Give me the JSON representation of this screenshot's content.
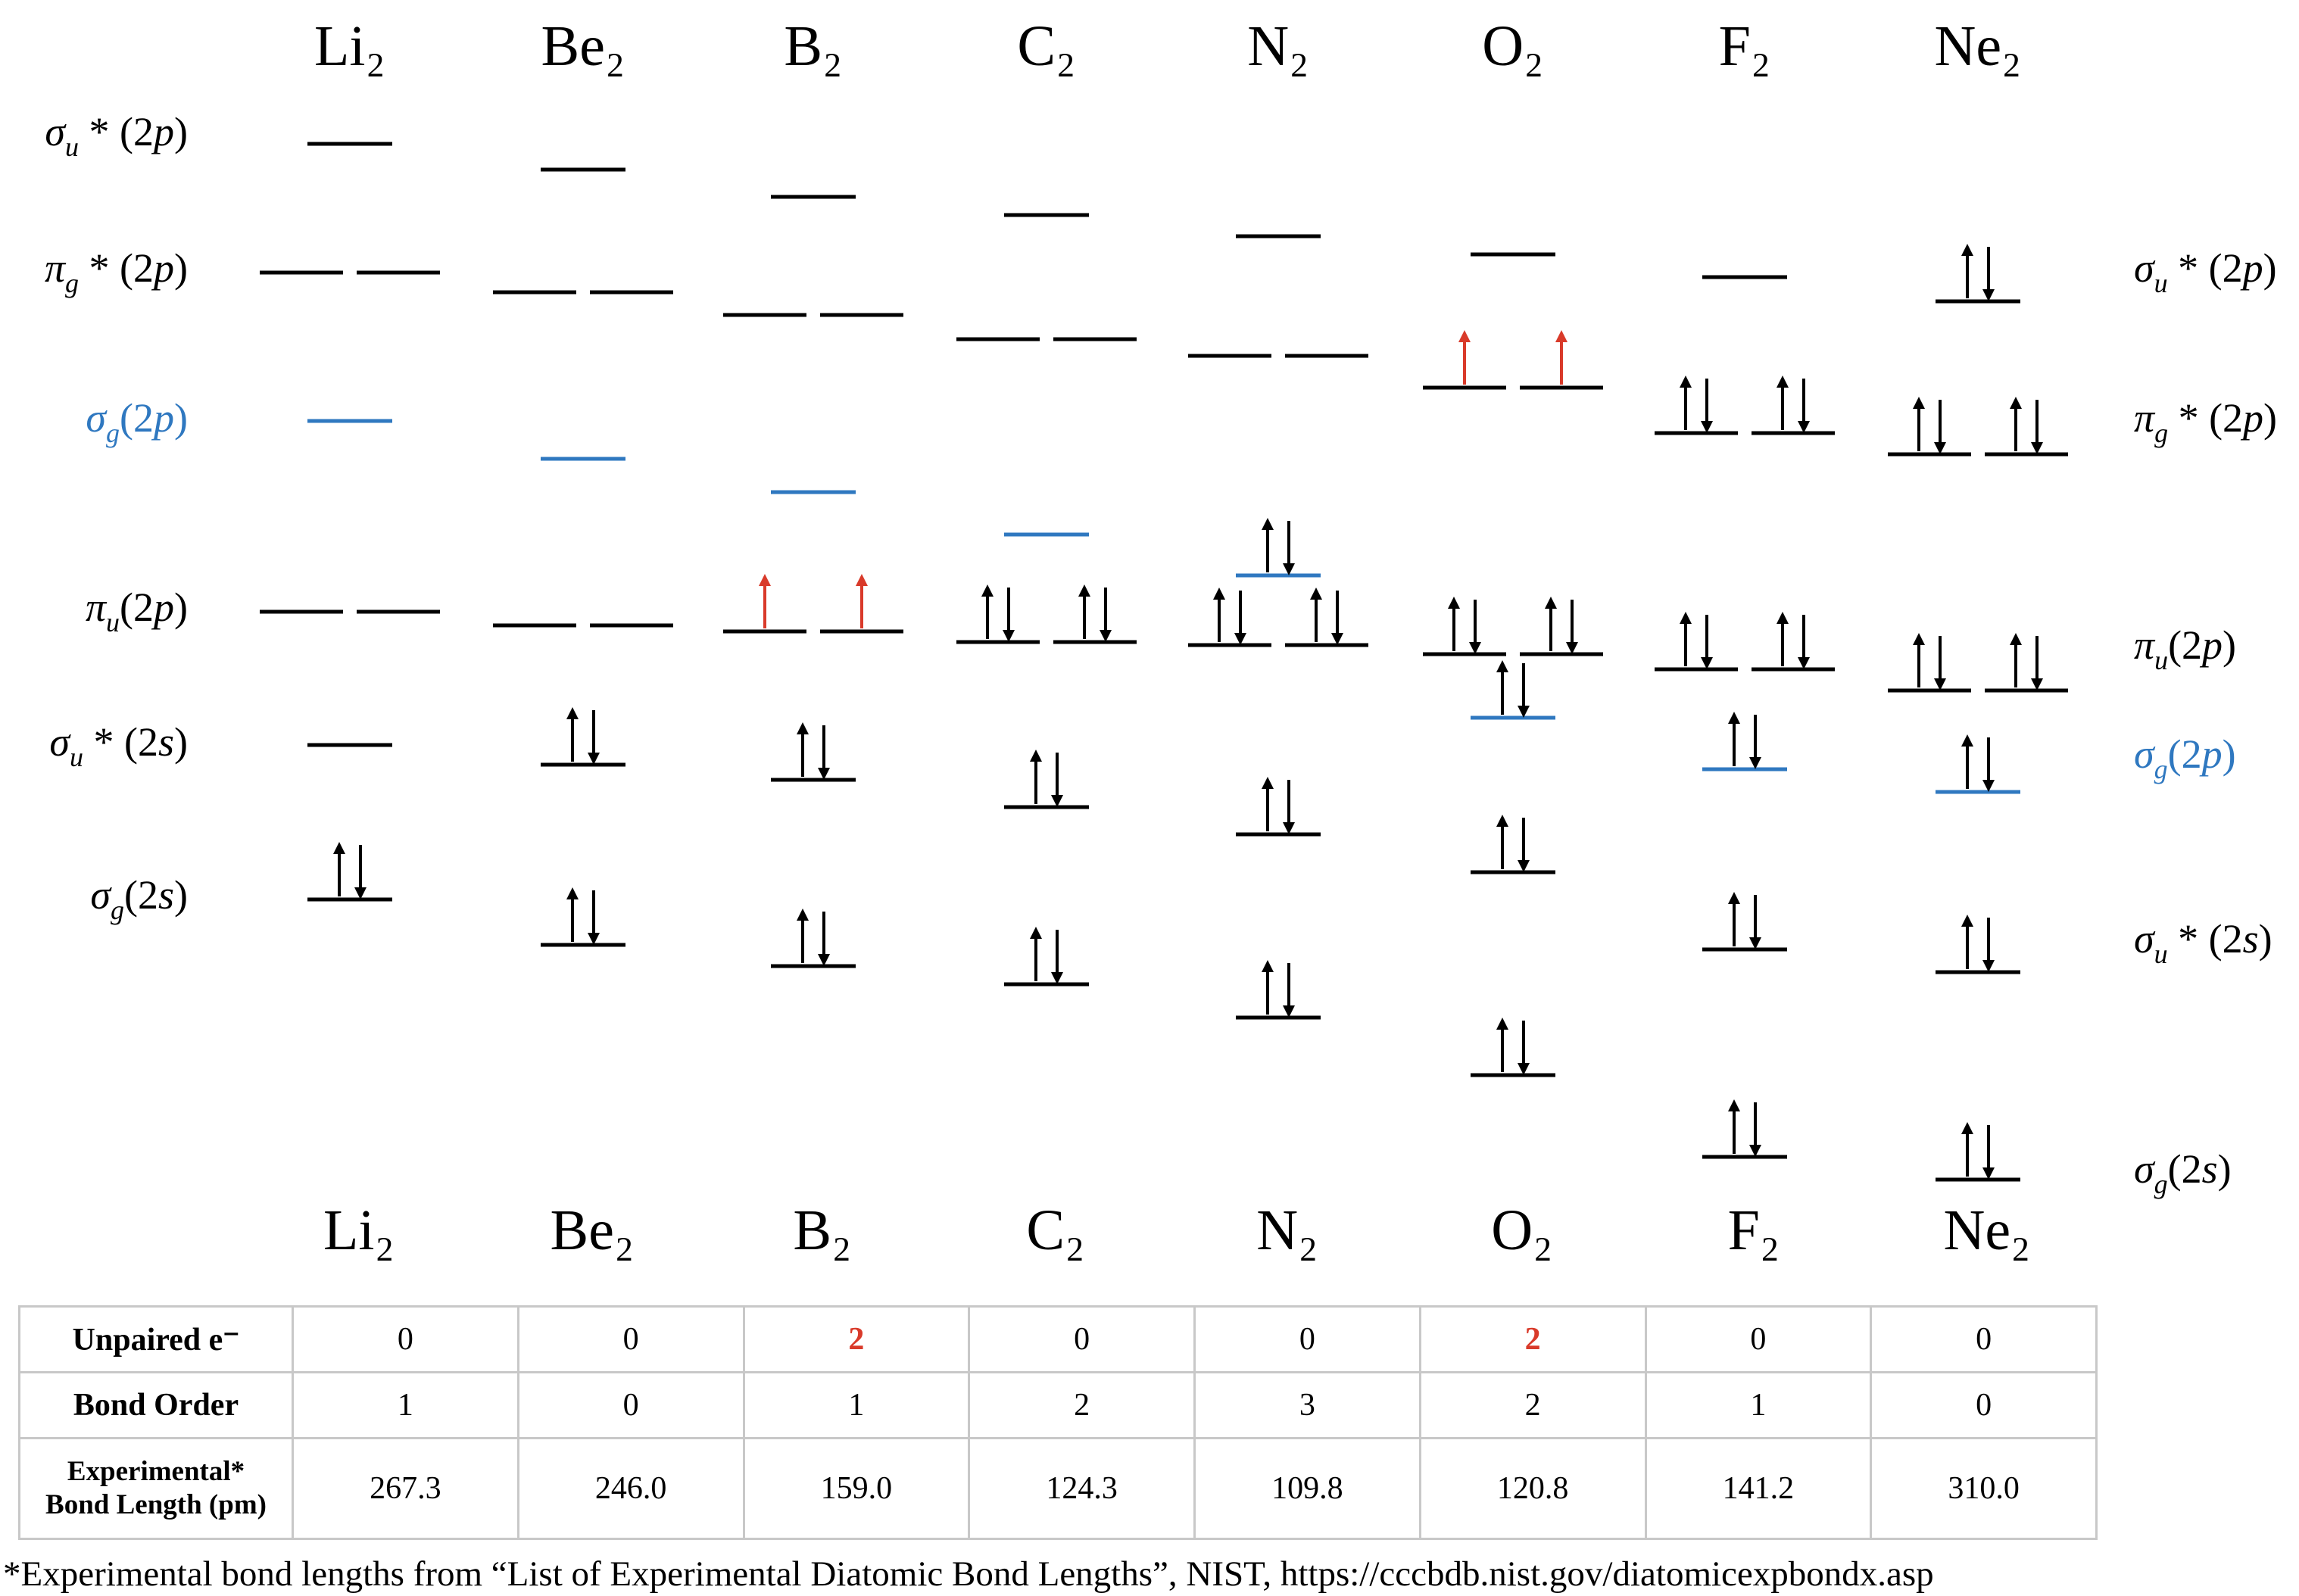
{
  "title": "",
  "molecules": [
    "Li₂",
    "Be₂",
    "B₂",
    "C₂",
    "N₂",
    "O₂",
    "F₂",
    "Ne₂"
  ],
  "left_labels": [
    {
      "sym": "σ",
      "sub": "u",
      "star": true,
      "orb": "2p",
      "color": "#000000"
    },
    {
      "sym": "π",
      "sub": "g",
      "star": true,
      "orb": "2p",
      "color": "#000000"
    },
    {
      "sym": "σ",
      "sub": "g",
      "star": false,
      "orb": "2p",
      "color": "#2f78c0"
    },
    {
      "sym": "π",
      "sub": "u",
      "star": false,
      "orb": "2p",
      "color": "#000000"
    },
    {
      "sym": "σ",
      "sub": "u",
      "star": true,
      "orb": "2s",
      "color": "#000000"
    },
    {
      "sym": "σ",
      "sub": "g",
      "star": false,
      "orb": "2s",
      "color": "#000000"
    }
  ],
  "right_labels": [
    {
      "sym": "σ",
      "sub": "u",
      "star": true,
      "orb": "2p",
      "color": "#000000"
    },
    {
      "sym": "π",
      "sub": "g",
      "star": true,
      "orb": "2p",
      "color": "#000000"
    },
    {
      "sym": "π",
      "sub": "u",
      "star": false,
      "orb": "2p",
      "color": "#000000"
    },
    {
      "sym": "σ",
      "sub": "g",
      "star": false,
      "orb": "2p",
      "color": "#2f78c0"
    },
    {
      "sym": "σ",
      "sub": "u",
      "star": true,
      "orb": "2s",
      "color": "#000000"
    },
    {
      "sym": "σ",
      "sub": "g",
      "star": false,
      "orb": "2s",
      "color": "#000000"
    }
  ],
  "colors": {
    "sigma_g_2p": "#2f78c0",
    "unpaired_electron": "#d93a2a",
    "level": "#000000"
  },
  "electron_fill": {
    "Li₂": {
      "sigma_g_2s": 2,
      "sigma_u_2s": 0,
      "pi_u_2p": 0,
      "sigma_g_2p": 0,
      "pi_g_2p": 0,
      "sigma_u_2p": 0
    },
    "Be₂": {
      "sigma_g_2s": 2,
      "sigma_u_2s": 2,
      "pi_u_2p": 0,
      "sigma_g_2p": 0,
      "pi_g_2p": 0,
      "sigma_u_2p": 0
    },
    "B₂": {
      "sigma_g_2s": 2,
      "sigma_u_2s": 2,
      "pi_u_2p": 2,
      "sigma_g_2p": 0,
      "pi_g_2p": 0,
      "sigma_u_2p": 0
    },
    "C₂": {
      "sigma_g_2s": 2,
      "sigma_u_2s": 2,
      "pi_u_2p": 4,
      "sigma_g_2p": 0,
      "pi_g_2p": 0,
      "sigma_u_2p": 0
    },
    "N₂": {
      "sigma_g_2s": 2,
      "sigma_u_2s": 2,
      "pi_u_2p": 4,
      "sigma_g_2p": 2,
      "pi_g_2p": 0,
      "sigma_u_2p": 0
    },
    "O₂": {
      "sigma_g_2s": 2,
      "sigma_u_2s": 2,
      "sigma_g_2p": 2,
      "pi_u_2p": 4,
      "pi_g_2p": 2,
      "sigma_u_2p": 0
    },
    "F₂": {
      "sigma_g_2s": 2,
      "sigma_u_2s": 2,
      "sigma_g_2p": 2,
      "pi_u_2p": 4,
      "pi_g_2p": 4,
      "sigma_u_2p": 0
    },
    "Ne₂": {
      "sigma_g_2s": 2,
      "sigma_u_2s": 2,
      "sigma_g_2p": 2,
      "pi_u_2p": 4,
      "pi_g_2p": 4,
      "sigma_u_2p": 2
    }
  },
  "table": {
    "headers": [
      "Unpaired e⁻",
      "Bond Order",
      "Experimental*\nBond Length (pm)"
    ],
    "unpaired": [
      "0",
      "0",
      "2",
      "0",
      "0",
      "2",
      "0",
      "0"
    ],
    "bond_order": [
      "1",
      "0",
      "1",
      "2",
      "3",
      "2",
      "1",
      "0"
    ],
    "bond_length": [
      "267.3",
      "246.0",
      "159.0",
      "124.3",
      "109.8",
      "120.8",
      "141.2",
      "310.0"
    ]
  },
  "footnote": "*Experimental bond lengths from “List of Experimental Diatomic Bond Lengths”, NIST, https://cccbdb.nist.gov/diatomicexpbondx.asp"
}
